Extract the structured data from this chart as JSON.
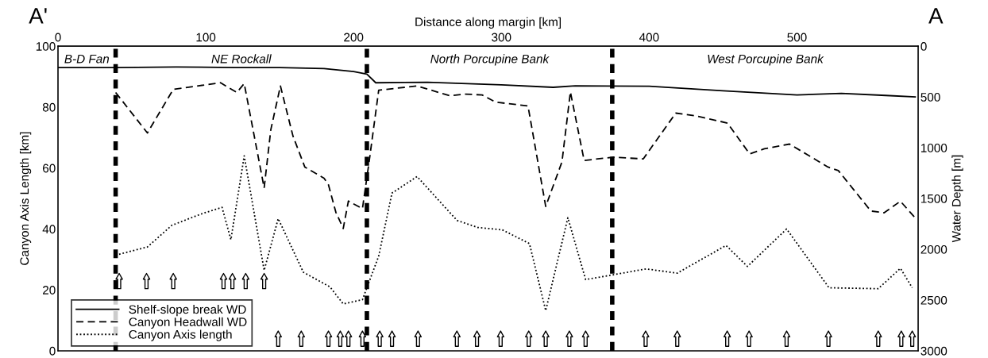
{
  "chart_data": {
    "type": "line",
    "xlabel": "Distance along margin [km]",
    "ylabel": "Canyon Axis Length [km]",
    "y2label": "Water Depth [m]",
    "xlim": [
      0,
      582
    ],
    "xticks": [
      0,
      100,
      200,
      300,
      400,
      500
    ],
    "ylim": [
      0,
      100
    ],
    "yticks": [
      0,
      20,
      40,
      60,
      80,
      100
    ],
    "y2lim": [
      3000,
      0
    ],
    "y2ticks": [
      0,
      500,
      1000,
      1500,
      2000,
      2500,
      3000
    ],
    "grid": false,
    "legend": "bottom left",
    "marker": "none",
    "series": [
      {
        "name": "Shelf-slope break WD",
        "axis": "y2",
        "color": "#000000",
        "line_style": "solid",
        "x": [
          0,
          40,
          80,
          120,
          150,
          180,
          200,
          209,
          215,
          250,
          300,
          335,
          350,
          400,
          450,
          500,
          530,
          560,
          580
        ],
        "values": [
          210,
          210,
          205,
          210,
          210,
          220,
          250,
          275,
          360,
          355,
          380,
          405,
          390,
          395,
          440,
          480,
          465,
          485,
          500
        ]
      },
      {
        "name": "Canyon Headwall WD",
        "axis": "y2",
        "color": "#000000",
        "line_style": "dashed",
        "x": [
          39,
          60.5,
          78,
          110,
          121,
          126,
          139.5,
          144,
          150.5,
          159,
          167,
          180,
          183,
          188,
          193,
          196.5,
          206,
          210.5,
          217,
          243,
          265,
          276,
          287,
          296,
          318,
          330,
          341,
          346.7,
          356,
          376,
          396,
          418,
          433,
          453,
          468,
          478,
          495,
          521,
          528,
          550,
          559,
          570,
          580
        ],
        "values": [
          456,
          854,
          425,
          360,
          456,
          368,
          1396,
          822,
          392,
          885,
          1190,
          1300,
          1365,
          1635,
          1795,
          1525,
          1600,
          1140,
          433,
          392,
          488,
          472,
          480,
          551,
          588,
          1578,
          1139,
          450,
          1125,
          1093,
          1110,
          659,
          690,
          757,
          1061,
          1010,
          964,
          1190,
          1225,
          1623,
          1640,
          1527,
          1690
        ]
      },
      {
        "name": "Canyon Axis length",
        "color": "#000000",
        "line_style": "dotted",
        "x": [
          39,
          60.5,
          77,
          96.7,
          111,
          117,
          126,
          139.5,
          149,
          166,
          184,
          193,
          206,
          217,
          226,
          243,
          270,
          284,
          300.7,
          319,
          330,
          345,
          357,
          376,
          398,
          419,
          452,
          466.5,
          493,
          521.7,
          555,
          570,
          578
        ],
        "values": [
          31.4,
          34.1,
          41.2,
          44.9,
          47.1,
          36.5,
          64,
          26.4,
          43.4,
          25.8,
          21,
          15.4,
          16.8,
          31.1,
          51.8,
          57.2,
          42.8,
          40.5,
          39.7,
          35.2,
          13.2,
          43.7,
          23.4,
          25,
          26.9,
          25.5,
          34.6,
          27.7,
          40,
          20.7,
          20.4,
          27.1,
          20.7
        ]
      },
      {
        "type": "scatter",
        "marker": "triangle",
        "color": "#000000",
        "x": [
          41.4,
          59.9,
          78,
          112,
          118,
          127,
          139.5
        ],
        "values": [
          22.9,
          22.9,
          22.9,
          22.9,
          22.9,
          22.9,
          22.9
        ]
      },
      {
        "type": "scatter",
        "marker": "triangle",
        "color": "#000000",
        "x": [
          149,
          164.6,
          183,
          191,
          196.5,
          206,
          217.7,
          226,
          243.6,
          269.9,
          283.5,
          299.5,
          318.5,
          330,
          346,
          357,
          397.6,
          419,
          452.8,
          467.6,
          493,
          521.3,
          555,
          570.6,
          578
        ],
        "values": [
          4,
          4,
          4,
          4,
          4,
          4,
          4,
          4,
          4,
          4,
          4,
          4,
          4,
          4,
          4,
          4,
          4,
          4,
          4,
          4,
          4,
          4,
          4,
          4,
          4
        ]
      }
    ],
    "ref_lines": [
      {
        "axis": "x",
        "value": 39,
        "label": null,
        "color": "#000000",
        "line_style": "dashed"
      },
      {
        "axis": "x",
        "value": 209,
        "label": null,
        "color": "#000000",
        "line_style": "dashed"
      },
      {
        "axis": "x",
        "value": 375,
        "label": null,
        "color": "#000000",
        "line_style": "dashed"
      }
    ],
    "annotations": [
      "A'",
      "A",
      "B-D Fan",
      "NE Rockall",
      "North Porcupine Bank",
      "West Porcupine Bank"
    ]
  }
}
